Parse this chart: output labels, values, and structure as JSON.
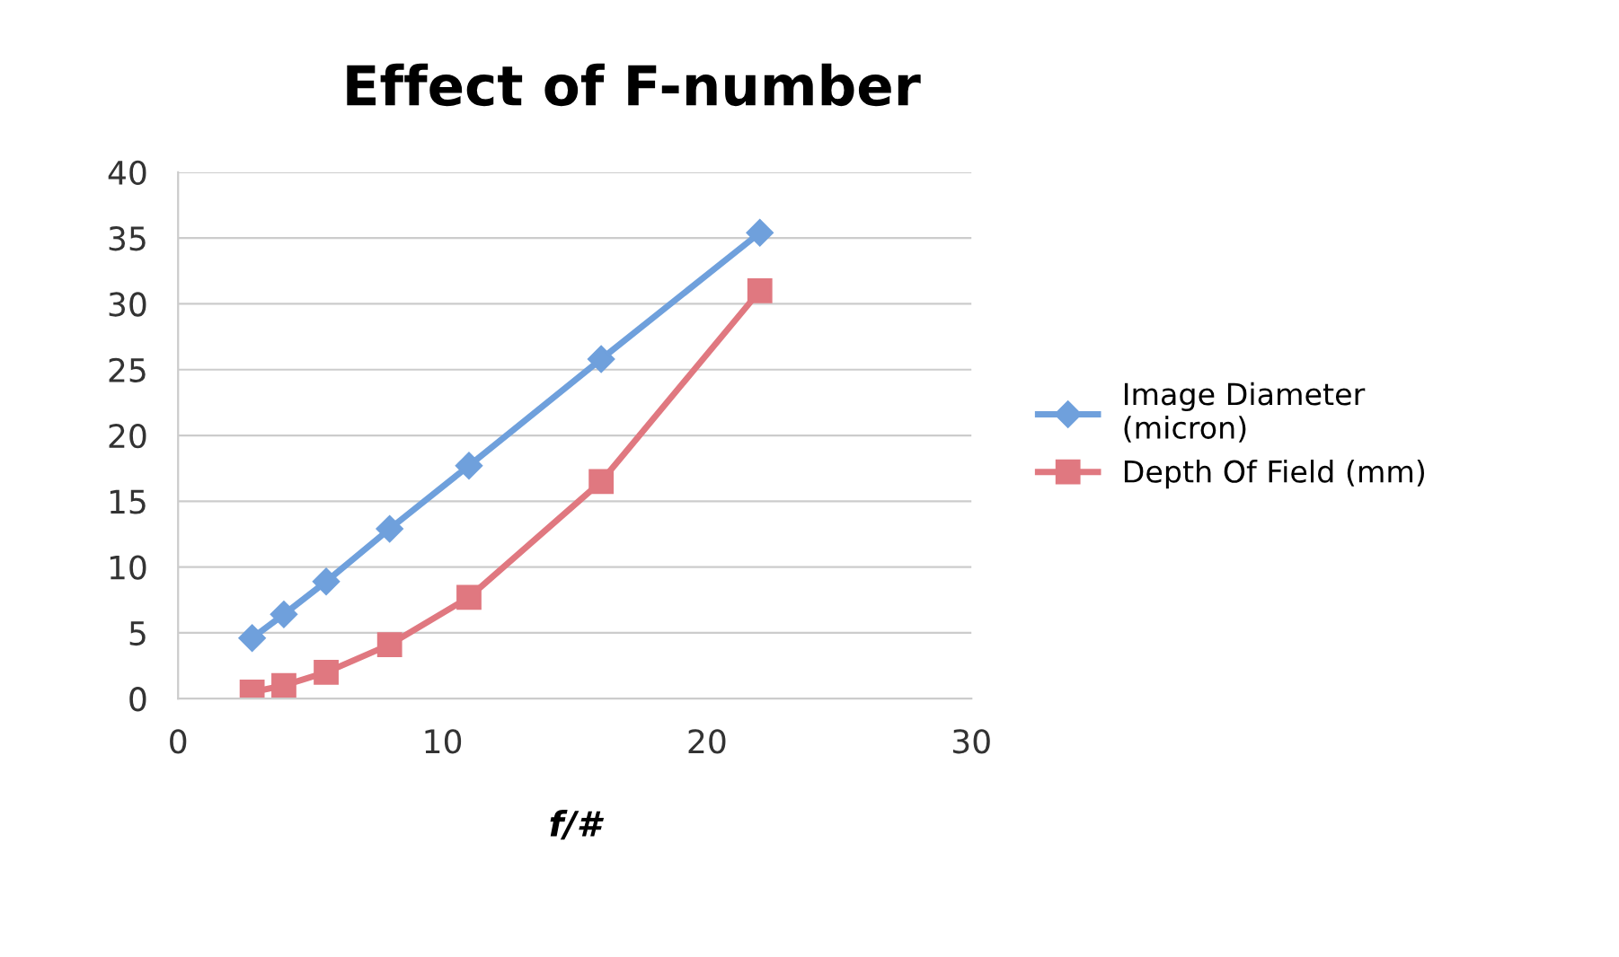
{
  "chart_data": {
    "type": "line",
    "title": "Effect of F-number",
    "xlabel": "f/#",
    "x": [
      2.8,
      4,
      5.6,
      8,
      11,
      16,
      22
    ],
    "series": [
      {
        "name": "Image Diameter\n(micron)",
        "color": "#6fa0dc",
        "marker": "diamond",
        "values": [
          4.6,
          6.4,
          8.9,
          12.9,
          17.7,
          25.8,
          35.4
        ]
      },
      {
        "name": "Depth Of Field (mm)",
        "color": "#e07880",
        "marker": "square",
        "values": [
          0.5,
          1,
          2,
          4.1,
          7.7,
          16.5,
          31
        ]
      }
    ],
    "xlim": [
      0,
      30
    ],
    "xticks": [
      0,
      10,
      20,
      30
    ],
    "ylim": [
      0,
      40
    ],
    "yticks": [
      0,
      5,
      10,
      15,
      20,
      25,
      30,
      35,
      40
    ],
    "grid": "y",
    "legend": "right",
    "line_style": "solid"
  }
}
